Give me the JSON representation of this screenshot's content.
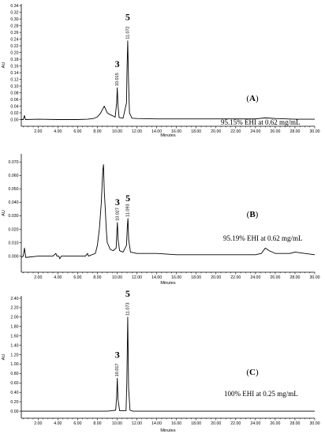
{
  "chart_data": [
    {
      "type": "line",
      "panel_label": "A",
      "annotation": "95.15% EHI at 0.62 mg/mL",
      "xlabel": "Minutes",
      "ylabel": "AU",
      "xlim": [
        0.3,
        30.0
      ],
      "ylim": [
        -0.02,
        0.345
      ],
      "xticks": [
        2,
        4,
        6,
        8,
        10,
        12,
        14,
        16,
        18,
        20,
        22,
        24,
        26,
        28,
        30
      ],
      "xtick_labels": [
        "2.00",
        "4.00",
        "6.00",
        "8.00",
        "10.00",
        "12.00",
        "14.00",
        "16.00",
        "18.00",
        "20.00",
        "22.00",
        "24.00",
        "26.00",
        "28.00",
        "30.00"
      ],
      "yticks": [
        0.0,
        0.02,
        0.04,
        0.06,
        0.08,
        0.1,
        0.12,
        0.14,
        0.16,
        0.18,
        0.2,
        0.22,
        0.24,
        0.26,
        0.28,
        0.3,
        0.32,
        0.34
      ],
      "ytick_labels": [
        "0.00",
        "0.02",
        "0.04",
        "0.06",
        "0.08",
        "0.10",
        "0.12",
        "0.14",
        "0.16",
        "0.18",
        "0.20",
        "0.22",
        "0.24",
        "0.26",
        "0.28",
        "0.30",
        "0.32",
        "0.34"
      ],
      "peaks": [
        {
          "rt": 10.015,
          "height": 0.095,
          "label": "10.015",
          "compound": "3"
        },
        {
          "rt": 11.072,
          "height": 0.235,
          "label": "11.072",
          "compound": "5"
        }
      ],
      "trace": [
        [
          0.3,
          0.0
        ],
        [
          0.5,
          0.0
        ],
        [
          0.62,
          0.012
        ],
        [
          0.72,
          0.0
        ],
        [
          2.0,
          0.001
        ],
        [
          4.0,
          0.0
        ],
        [
          6.0,
          0.0
        ],
        [
          7.0,
          0.001
        ],
        [
          7.6,
          0.003
        ],
        [
          8.0,
          0.008
        ],
        [
          8.3,
          0.018
        ],
        [
          8.55,
          0.032
        ],
        [
          8.7,
          0.04
        ],
        [
          8.85,
          0.03
        ],
        [
          9.0,
          0.02
        ],
        [
          9.2,
          0.016
        ],
        [
          9.5,
          0.012
        ],
        [
          9.8,
          0.007
        ],
        [
          9.95,
          0.05
        ],
        [
          10.015,
          0.095
        ],
        [
          10.08,
          0.045
        ],
        [
          10.2,
          0.006
        ],
        [
          10.6,
          0.004
        ],
        [
          10.95,
          0.05
        ],
        [
          11.0,
          0.15
        ],
        [
          11.072,
          0.235
        ],
        [
          11.15,
          0.12
        ],
        [
          11.25,
          0.02
        ],
        [
          11.5,
          0.004
        ],
        [
          12.0,
          0.003
        ],
        [
          14.0,
          0.002
        ],
        [
          16.0,
          0.002
        ],
        [
          18.0,
          0.002
        ],
        [
          20.0,
          0.002
        ],
        [
          22.0,
          0.002
        ],
        [
          24.0,
          0.002
        ],
        [
          25.0,
          0.005
        ],
        [
          26.0,
          0.003
        ],
        [
          28.0,
          0.001
        ],
        [
          30.0,
          0.001
        ]
      ]
    },
    {
      "type": "line",
      "panel_label": "B",
      "annotation": "95.19% EHI at 0.62 mg/mL",
      "xlabel": "Minutes",
      "ylabel": "AU",
      "xlim": [
        0.3,
        30.0
      ],
      "ylim": [
        -0.012,
        0.076
      ],
      "xticks": [
        2,
        4,
        6,
        8,
        10,
        12,
        14,
        16,
        18,
        20,
        22,
        24,
        26,
        28,
        30
      ],
      "xtick_labels": [
        "2.00",
        "4.00",
        "6.00",
        "8.00",
        "10.00",
        "12.00",
        "14.00",
        "16.00",
        "18.00",
        "20.00",
        "22.00",
        "24.00",
        "26.00",
        "28.00",
        "30.00"
      ],
      "yticks": [
        0.0,
        0.01,
        0.02,
        0.03,
        0.04,
        0.05,
        0.06,
        0.07
      ],
      "ytick_labels": [
        "0.000",
        "0.010",
        "0.020",
        "0.030",
        "0.040",
        "0.050",
        "0.060",
        "0.070"
      ],
      "peaks": [
        {
          "rt": 10.027,
          "height": 0.025,
          "label": "10.027",
          "compound": "3"
        },
        {
          "rt": 11.093,
          "height": 0.028,
          "label": "11.093",
          "compound": "5"
        }
      ],
      "trace": [
        [
          0.3,
          -0.001
        ],
        [
          0.5,
          0.0
        ],
        [
          0.62,
          0.006
        ],
        [
          0.75,
          -0.001
        ],
        [
          2.0,
          0.0
        ],
        [
          3.5,
          0.0
        ],
        [
          3.8,
          0.002
        ],
        [
          3.9,
          0.0
        ],
        [
          4.1,
          0.0
        ],
        [
          4.2,
          -0.002
        ],
        [
          4.35,
          0.0
        ],
        [
          6.8,
          0.0
        ],
        [
          7.0,
          0.002
        ],
        [
          7.1,
          0.0
        ],
        [
          7.8,
          0.002
        ],
        [
          8.0,
          0.008
        ],
        [
          8.2,
          0.02
        ],
        [
          8.4,
          0.04
        ],
        [
          8.55,
          0.064
        ],
        [
          8.62,
          0.068
        ],
        [
          8.7,
          0.048
        ],
        [
          8.8,
          0.035
        ],
        [
          8.9,
          0.02
        ],
        [
          9.0,
          0.01
        ],
        [
          9.3,
          0.005
        ],
        [
          9.6,
          0.004
        ],
        [
          9.9,
          0.006
        ],
        [
          9.97,
          0.018
        ],
        [
          10.027,
          0.025
        ],
        [
          10.1,
          0.012
        ],
        [
          10.25,
          0.004
        ],
        [
          10.6,
          0.003
        ],
        [
          10.95,
          0.008
        ],
        [
          11.03,
          0.022
        ],
        [
          11.093,
          0.028
        ],
        [
          11.17,
          0.012
        ],
        [
          11.35,
          0.003
        ],
        [
          12.0,
          0.002
        ],
        [
          14.0,
          0.002
        ],
        [
          16.0,
          0.001
        ],
        [
          18.0,
          0.001
        ],
        [
          20.0,
          0.001
        ],
        [
          22.0,
          0.001
        ],
        [
          24.0,
          0.001
        ],
        [
          24.6,
          0.002
        ],
        [
          25.0,
          0.006
        ],
        [
          25.4,
          0.004
        ],
        [
          26.0,
          0.002
        ],
        [
          27.5,
          0.002
        ],
        [
          28.0,
          0.003
        ],
        [
          29.0,
          0.002
        ],
        [
          30.0,
          0.001
        ]
      ]
    },
    {
      "type": "line",
      "panel_label": "C",
      "annotation": "100% EHI at 0.25 mg/mL",
      "xlabel": "Minutes",
      "ylabel": "AU",
      "xlim": [
        0.3,
        30.0
      ],
      "ylim": [
        -0.15,
        2.45
      ],
      "xticks": [
        2,
        4,
        6,
        8,
        10,
        12,
        14,
        16,
        18,
        20,
        22,
        24,
        26,
        28,
        30
      ],
      "xtick_labels": [
        "2.00",
        "4.00",
        "6.00",
        "8.00",
        "10.00",
        "12.00",
        "14.00",
        "16.00",
        "18.00",
        "20.00",
        "22.00",
        "24.00",
        "26.00",
        "28.00",
        "30.00"
      ],
      "yticks": [
        0.0,
        0.2,
        0.4,
        0.6,
        0.8,
        1.0,
        1.2,
        1.4,
        1.6,
        1.8,
        2.0,
        2.2,
        2.4
      ],
      "ytick_labels": [
        "0.00",
        "0.20",
        "0.40",
        "0.60",
        "0.80",
        "1.00",
        "1.20",
        "1.40",
        "1.60",
        "1.80",
        "2.00",
        "2.20",
        "2.40"
      ],
      "peaks": [
        {
          "rt": 10.017,
          "height": 0.7,
          "label": "10.017",
          "compound": "3"
        },
        {
          "rt": 11.073,
          "height": 2.0,
          "label": "11.073",
          "compound": "5"
        }
      ],
      "trace": [
        [
          0.3,
          0.0
        ],
        [
          2.0,
          0.0
        ],
        [
          4.0,
          0.0
        ],
        [
          6.0,
          0.0
        ],
        [
          8.0,
          0.0
        ],
        [
          9.0,
          0.0
        ],
        [
          9.5,
          0.01
        ],
        [
          9.85,
          0.02
        ],
        [
          9.95,
          0.3
        ],
        [
          10.017,
          0.7
        ],
        [
          10.09,
          0.25
        ],
        [
          10.25,
          0.01
        ],
        [
          10.9,
          0.01
        ],
        [
          10.98,
          0.6
        ],
        [
          11.073,
          2.0
        ],
        [
          11.16,
          0.5
        ],
        [
          11.3,
          0.02
        ],
        [
          11.6,
          0.0
        ],
        [
          14.0,
          0.0
        ],
        [
          16.0,
          0.0
        ],
        [
          18.0,
          0.0
        ],
        [
          20.0,
          0.0
        ],
        [
          22.0,
          0.0
        ],
        [
          24.0,
          0.0
        ],
        [
          26.0,
          0.0
        ],
        [
          28.0,
          0.0
        ],
        [
          30.0,
          0.0
        ]
      ]
    }
  ]
}
